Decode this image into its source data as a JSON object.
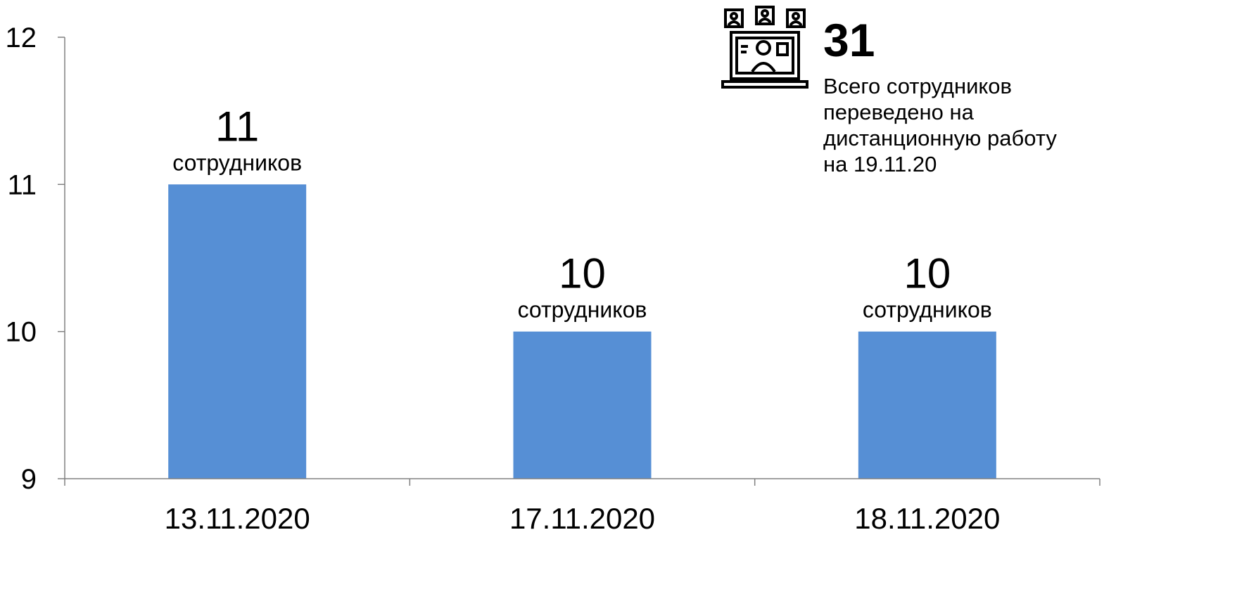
{
  "chart_data": {
    "type": "bar",
    "categories": [
      "13.11.2020",
      "17.11.2020",
      "18.11.2020"
    ],
    "values": [
      11,
      10,
      10
    ],
    "value_unit_label": "сотрудников",
    "ylim": [
      9,
      12
    ],
    "yticks": [
      9,
      10,
      11,
      12
    ],
    "grid": false,
    "bar_color": "#568fd5",
    "axis_color": "#808080"
  },
  "summary": {
    "total": "31",
    "description": "Всего сотрудников\nпереведено на\nдистанционную работу\nна 19.11.20",
    "icon": "remote-work-laptop-icon"
  }
}
